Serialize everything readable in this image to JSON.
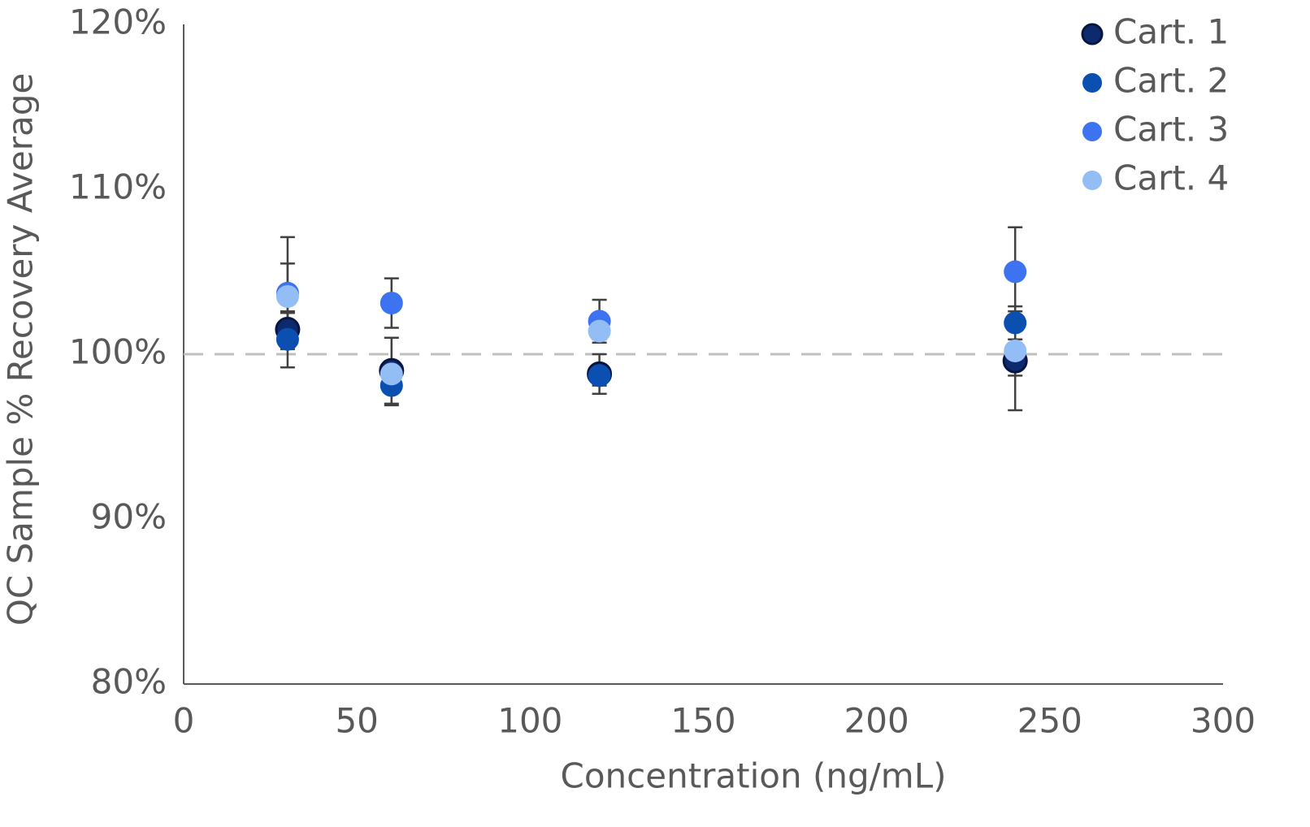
{
  "chart_data": {
    "type": "scatter",
    "x_label": "Concentration (ng/mL)",
    "y_label": "QC Sample % Recovery Average",
    "xlim": [
      0,
      300
    ],
    "xticks": [
      0,
      50,
      100,
      150,
      200,
      250,
      300
    ],
    "ylim": [
      80,
      120
    ],
    "yticks": [
      {
        "value": 80,
        "label": "80%"
      },
      {
        "value": 90,
        "label": "90%"
      },
      {
        "value": 100,
        "label": "100%"
      },
      {
        "value": 110,
        "label": "110%"
      },
      {
        "value": 120,
        "label": "120%"
      }
    ],
    "reference_line": 100,
    "grid": false,
    "legend": "top-right",
    "series": [
      {
        "name": "Cart. 1",
        "color": "#0d2a6e",
        "x": [
          30,
          60,
          120,
          240
        ],
        "values": [
          101.5,
          99.0,
          98.8,
          99.6
        ],
        "error": [
          1.0,
          2.0,
          1.2,
          3.0
        ]
      },
      {
        "name": "Cart. 2",
        "color": "#0b4fb0",
        "x": [
          30,
          60,
          120,
          240
        ],
        "values": [
          100.9,
          98.1,
          98.7,
          101.9
        ],
        "error": [
          1.7,
          1.2,
          0.6,
          1.0
        ]
      },
      {
        "name": "Cart. 3",
        "color": "#3d73f0",
        "x": [
          30,
          60,
          120,
          240
        ],
        "values": [
          103.7,
          103.1,
          102.0,
          105.0
        ],
        "error": [
          3.4,
          1.5,
          1.3,
          2.7
        ]
      },
      {
        "name": "Cart. 4",
        "color": "#93bdf5",
        "x": [
          30,
          60,
          120,
          240
        ],
        "values": [
          103.5,
          98.8,
          101.4,
          100.2
        ],
        "error": [
          2.0,
          0.5,
          0.5,
          1.5
        ]
      }
    ]
  }
}
